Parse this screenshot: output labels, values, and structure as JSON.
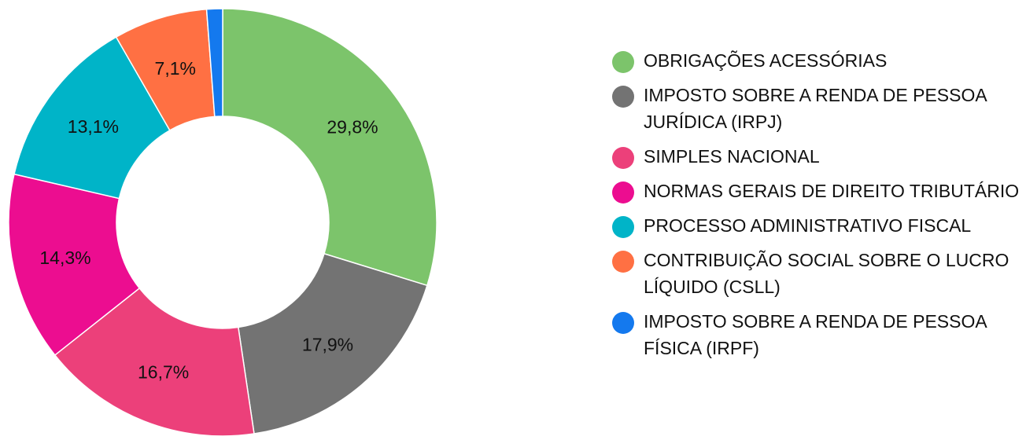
{
  "chart_data": {
    "type": "pie",
    "variant": "donut",
    "title": "",
    "legend_position": "right",
    "slices": [
      {
        "name": "OBRIGAÇÕES ACESSÓRIAS",
        "value": 29.8,
        "label": "29,8%",
        "color": "#7cc46b"
      },
      {
        "name": "IMPOSTO SOBRE A RENDA DE PESSOA JURÍDICA (IRPJ)",
        "value": 17.9,
        "label": "17,9%",
        "color": "#737373"
      },
      {
        "name": "SIMPLES NACIONAL",
        "value": 16.7,
        "label": "16,7%",
        "color": "#ec407a"
      },
      {
        "name": "NORMAS GERAIS DE DIREITO TRIBUTÁRIO",
        "value": 14.3,
        "label": "14,3%",
        "color": "#ec0d90"
      },
      {
        "name": "PROCESSO ADMINISTRATIVO FISCAL",
        "value": 13.1,
        "label": "13,1%",
        "color": "#00b4c8"
      },
      {
        "name": "CONTRIBUIÇÃO SOCIAL SOBRE O LUCRO LÍQUIDO (CSLL)",
        "value": 7.1,
        "label": "7,1%",
        "color": "#ff7043"
      },
      {
        "name": "IMPOSTO SOBRE A RENDA DE PESSOA FÍSICA (IRPF)",
        "value": 1.2,
        "label": "",
        "color": "#1479ee"
      }
    ]
  }
}
